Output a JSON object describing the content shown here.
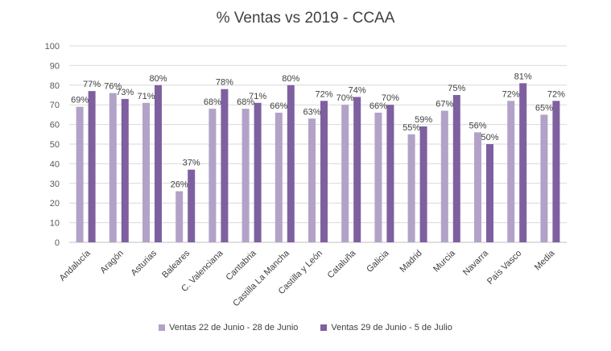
{
  "chart_data": {
    "type": "bar",
    "title": "% Ventas vs 2019 - CCAA",
    "xlabel": "",
    "ylabel": "",
    "ylim": [
      0,
      100
    ],
    "yticks": [
      0,
      10,
      20,
      30,
      40,
      50,
      60,
      70,
      80,
      90,
      100
    ],
    "grid": true,
    "legend_position": "bottom",
    "categories": [
      "Andalucía",
      "Aragón",
      "Asturias",
      "Baleares",
      "C. Valenciana",
      "Cantabria",
      "Castilla La Mancha",
      "Castilla y León",
      "Cataluña",
      "Galicia",
      "Madrid",
      "Murcia",
      "Navarra",
      "País Vasco",
      "Media"
    ],
    "series": [
      {
        "name": "Ventas 22 de Junio - 28 de Junio",
        "color": "#b3a2c7",
        "values": [
          69,
          76,
          71,
          26,
          68,
          68,
          66,
          63,
          70,
          66,
          55,
          67,
          56,
          72,
          65
        ],
        "labels": [
          "69%",
          "76%",
          "71%",
          "26%",
          "68%",
          "68%",
          "66%",
          "63%",
          "70%",
          "66%",
          "55%",
          "67%",
          "56%",
          "72%",
          "65%"
        ]
      },
      {
        "name": "Ventas 29 de Junio - 5 de Julio",
        "color": "#7e60a0",
        "values": [
          77,
          73,
          80,
          37,
          78,
          71,
          80,
          72,
          74,
          70,
          59,
          75,
          50,
          81,
          72
        ],
        "labels": [
          "77%",
          "73%",
          "80%",
          "37%",
          "78%",
          "71%",
          "80%",
          "72%",
          "74%",
          "70%",
          "59%",
          "75%",
          "50%",
          "81%",
          "72%"
        ]
      }
    ]
  }
}
